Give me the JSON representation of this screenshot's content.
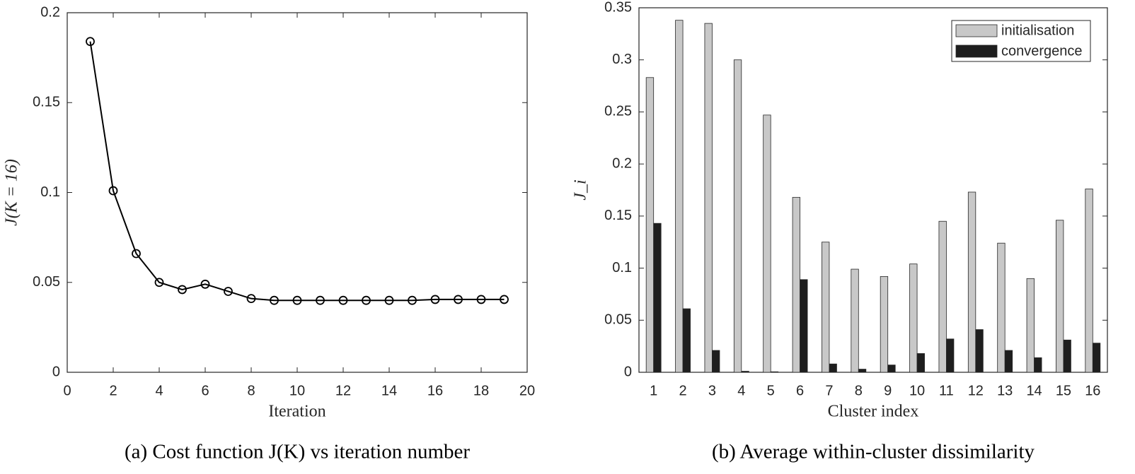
{
  "chart_data": [
    {
      "type": "line",
      "caption": "(a) Cost function J(K) vs iteration number",
      "xlabel": "Iteration",
      "ylabel": "J(K = 16)",
      "x": [
        1,
        2,
        3,
        4,
        5,
        6,
        7,
        8,
        9,
        10,
        11,
        12,
        13,
        14,
        15,
        16,
        17,
        18,
        19
      ],
      "values": [
        0.184,
        0.101,
        0.066,
        0.05,
        0.046,
        0.049,
        0.045,
        0.041,
        0.04,
        0.04,
        0.04,
        0.04,
        0.04,
        0.04,
        0.04,
        0.0405,
        0.0405,
        0.0405,
        0.0405
      ],
      "color": "#000000",
      "xlim": [
        0,
        20
      ],
      "xticks": [
        0,
        2,
        4,
        6,
        8,
        10,
        12,
        14,
        16,
        18,
        20
      ],
      "ylim": [
        0,
        0.2
      ],
      "yticks": [
        0,
        0.05,
        0.1,
        0.15,
        0.2
      ]
    },
    {
      "type": "bar",
      "caption": "(b) Average within-cluster dissimilarity",
      "xlabel": "Cluster index",
      "ylabel": "J_i",
      "categories": [
        "1",
        "2",
        "3",
        "4",
        "5",
        "6",
        "7",
        "8",
        "9",
        "10",
        "11",
        "12",
        "13",
        "14",
        "15",
        "16"
      ],
      "series": [
        {
          "name": "initialisation",
          "color": "#c8c8c8",
          "values": [
            0.283,
            0.338,
            0.335,
            0.3,
            0.247,
            0.168,
            0.125,
            0.099,
            0.092,
            0.104,
            0.145,
            0.173,
            0.124,
            0.09,
            0.146,
            0.176
          ]
        },
        {
          "name": "convergence",
          "color": "#1e1e1e",
          "values": [
            0.143,
            0.061,
            0.021,
            0.001,
            0.0005,
            0.089,
            0.008,
            0.003,
            0.007,
            0.018,
            0.032,
            0.041,
            0.021,
            0.014,
            0.031,
            0.028
          ]
        }
      ],
      "ylim": [
        0,
        0.35
      ],
      "yticks": [
        0,
        0.05,
        0.1,
        0.15,
        0.2,
        0.25,
        0.3,
        0.35
      ],
      "legend": "northeast"
    }
  ]
}
